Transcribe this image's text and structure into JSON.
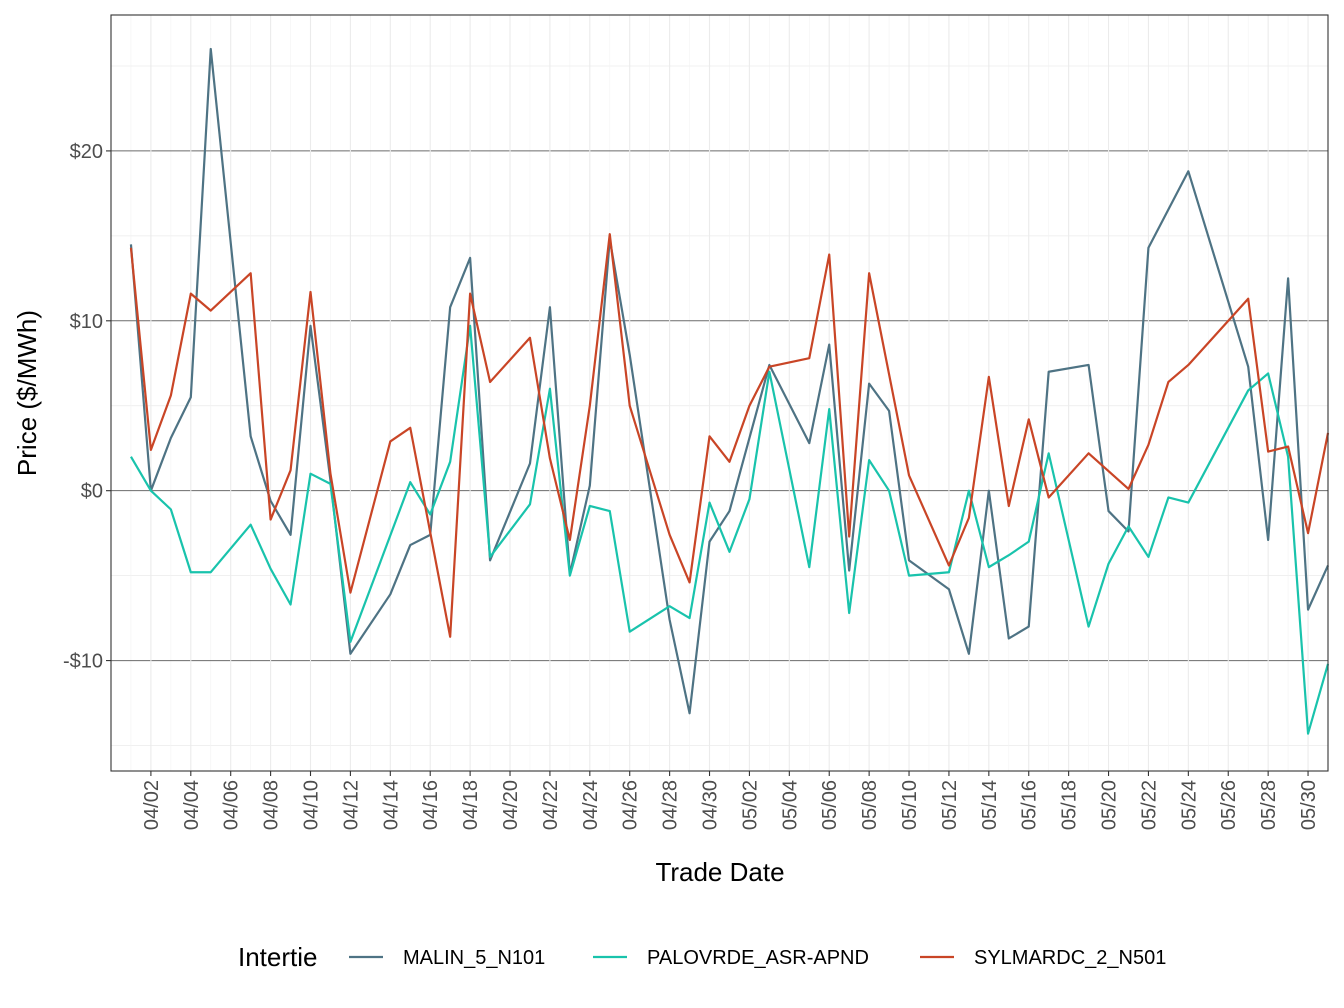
{
  "chart_data": {
    "type": "line",
    "xlabel": "Trade Date",
    "ylabel": "Price ($/MWh)",
    "y_tick_labels": [
      "-$10",
      "$0",
      "$10",
      "$20"
    ],
    "y_ticks": [
      -10,
      0,
      10,
      20
    ],
    "ylim": [
      -16.5,
      28
    ],
    "xlim": [
      "2024-03-31",
      "2024-05-31"
    ],
    "x_ticks": [
      "2024-04-02",
      "2024-04-04",
      "2024-04-06",
      "2024-04-08",
      "2024-04-10",
      "2024-04-12",
      "2024-04-14",
      "2024-04-16",
      "2024-04-18",
      "2024-04-20",
      "2024-04-22",
      "2024-04-24",
      "2024-04-26",
      "2024-04-28",
      "2024-04-30",
      "2024-05-02",
      "2024-05-04",
      "2024-05-06",
      "2024-05-08",
      "2024-05-10",
      "2024-05-12",
      "2024-05-14",
      "2024-05-16",
      "2024-05-18",
      "2024-05-20",
      "2024-05-22",
      "2024-05-24",
      "2024-05-26",
      "2024-05-28",
      "2024-05-30"
    ],
    "x_tick_labels": [
      "04/02",
      "04/04",
      "04/06",
      "04/08",
      "04/10",
      "04/12",
      "04/14",
      "04/16",
      "04/18",
      "04/20",
      "04/22",
      "04/24",
      "04/26",
      "04/28",
      "04/30",
      "05/02",
      "05/04",
      "05/06",
      "05/08",
      "05/10",
      "05/12",
      "05/14",
      "05/16",
      "05/18",
      "05/20",
      "05/22",
      "05/24",
      "05/26",
      "05/28",
      "05/30"
    ],
    "grid": true,
    "legend": {
      "title": "Intertie",
      "position": "bottom"
    },
    "series": [
      {
        "name": "MALIN_5_N101",
        "color": "#4e7384",
        "points": [
          [
            "2024-04-01",
            14.5
          ],
          [
            "2024-04-02",
            0.0
          ],
          [
            "2024-04-03",
            3.1
          ],
          [
            "2024-04-04",
            5.5
          ],
          [
            "2024-04-05",
            26.0
          ],
          [
            "2024-04-07",
            3.2
          ],
          [
            "2024-04-08",
            -0.6
          ],
          [
            "2024-04-09",
            -2.6
          ],
          [
            "2024-04-10",
            9.7
          ],
          [
            "2024-04-11",
            0.6
          ],
          [
            "2024-04-12",
            -9.6
          ],
          [
            "2024-04-14",
            -6.1
          ],
          [
            "2024-04-15",
            -3.2
          ],
          [
            "2024-04-16",
            -2.6
          ],
          [
            "2024-04-17",
            10.8
          ],
          [
            "2024-04-18",
            13.7
          ],
          [
            "2024-04-19",
            -4.1
          ],
          [
            "2024-04-21",
            1.6
          ],
          [
            "2024-04-22",
            10.8
          ],
          [
            "2024-04-23",
            -4.9
          ],
          [
            "2024-04-24",
            0.3
          ],
          [
            "2024-04-25",
            14.8
          ],
          [
            "2024-04-26",
            8.0
          ],
          [
            "2024-04-28",
            -7.6
          ],
          [
            "2024-04-29",
            -13.1
          ],
          [
            "2024-04-30",
            -3.0
          ],
          [
            "2024-05-01",
            -1.2
          ],
          [
            "2024-05-03",
            7.4
          ],
          [
            "2024-05-05",
            2.8
          ],
          [
            "2024-05-06",
            8.6
          ],
          [
            "2024-05-07",
            -4.7
          ],
          [
            "2024-05-08",
            6.3
          ],
          [
            "2024-05-09",
            4.7
          ],
          [
            "2024-05-10",
            -4.1
          ],
          [
            "2024-05-12",
            -5.8
          ],
          [
            "2024-05-13",
            -9.6
          ],
          [
            "2024-05-14",
            0.0
          ],
          [
            "2024-05-15",
            -8.7
          ],
          [
            "2024-05-16",
            -8.0
          ],
          [
            "2024-05-17",
            7.0
          ],
          [
            "2024-05-19",
            7.4
          ],
          [
            "2024-05-20",
            -1.2
          ],
          [
            "2024-05-21",
            -2.4
          ],
          [
            "2024-05-22",
            14.3
          ],
          [
            "2024-05-24",
            18.8
          ],
          [
            "2024-05-27",
            7.3
          ],
          [
            "2024-05-28",
            -2.9
          ],
          [
            "2024-05-29",
            12.5
          ],
          [
            "2024-05-30",
            -7.0
          ],
          [
            "2024-05-31",
            -4.4
          ]
        ]
      },
      {
        "name": "PALOVRDE_ASR-APND",
        "color": "#19c3ac",
        "points": [
          [
            "2024-04-01",
            2.0
          ],
          [
            "2024-04-02",
            0.0
          ],
          [
            "2024-04-03",
            -1.1
          ],
          [
            "2024-04-04",
            -4.8
          ],
          [
            "2024-04-05",
            -4.8
          ],
          [
            "2024-04-07",
            -2.0
          ],
          [
            "2024-04-08",
            -4.6
          ],
          [
            "2024-04-09",
            -6.7
          ],
          [
            "2024-04-10",
            1.0
          ],
          [
            "2024-04-11",
            0.4
          ],
          [
            "2024-04-12",
            -8.9
          ],
          [
            "2024-04-15",
            0.5
          ],
          [
            "2024-04-16",
            -1.4
          ],
          [
            "2024-04-17",
            1.7
          ],
          [
            "2024-04-18",
            9.7
          ],
          [
            "2024-04-19",
            -3.9
          ],
          [
            "2024-04-21",
            -0.8
          ],
          [
            "2024-04-22",
            6.0
          ],
          [
            "2024-04-23",
            -5.0
          ],
          [
            "2024-04-24",
            -0.9
          ],
          [
            "2024-04-25",
            -1.2
          ],
          [
            "2024-04-26",
            -8.3
          ],
          [
            "2024-04-28",
            -6.8
          ],
          [
            "2024-04-29",
            -7.5
          ],
          [
            "2024-04-30",
            -0.7
          ],
          [
            "2024-05-01",
            -3.6
          ],
          [
            "2024-05-02",
            -0.5
          ],
          [
            "2024-05-03",
            7.0
          ],
          [
            "2024-05-05",
            -4.5
          ],
          [
            "2024-05-06",
            4.8
          ],
          [
            "2024-05-07",
            -7.2
          ],
          [
            "2024-05-08",
            1.8
          ],
          [
            "2024-05-09",
            0.0
          ],
          [
            "2024-05-10",
            -5.0
          ],
          [
            "2024-05-12",
            -4.8
          ],
          [
            "2024-05-13",
            0.0
          ],
          [
            "2024-05-14",
            -4.5
          ],
          [
            "2024-05-15",
            -3.8
          ],
          [
            "2024-05-16",
            -3.0
          ],
          [
            "2024-05-17",
            2.2
          ],
          [
            "2024-05-19",
            -8.0
          ],
          [
            "2024-05-20",
            -4.3
          ],
          [
            "2024-05-21",
            -2.1
          ],
          [
            "2024-05-22",
            -3.9
          ],
          [
            "2024-05-23",
            -0.4
          ],
          [
            "2024-05-24",
            -0.7
          ],
          [
            "2024-05-27",
            5.9
          ],
          [
            "2024-05-28",
            6.9
          ],
          [
            "2024-05-29",
            2.0
          ],
          [
            "2024-05-30",
            -14.3
          ],
          [
            "2024-05-31",
            -10.2
          ]
        ]
      },
      {
        "name": "SYLMARDC_2_N501",
        "color": "#c94526",
        "points": [
          [
            "2024-04-01",
            14.3
          ],
          [
            "2024-04-02",
            2.4
          ],
          [
            "2024-04-03",
            5.6
          ],
          [
            "2024-04-04",
            11.6
          ],
          [
            "2024-04-05",
            10.6
          ],
          [
            "2024-04-07",
            12.8
          ],
          [
            "2024-04-08",
            -1.7
          ],
          [
            "2024-04-09",
            1.2
          ],
          [
            "2024-04-10",
            11.7
          ],
          [
            "2024-04-11",
            1.0
          ],
          [
            "2024-04-12",
            -6.0
          ],
          [
            "2024-04-14",
            2.9
          ],
          [
            "2024-04-15",
            3.7
          ],
          [
            "2024-04-17",
            -8.6
          ],
          [
            "2024-04-18",
            11.6
          ],
          [
            "2024-04-19",
            6.4
          ],
          [
            "2024-04-21",
            9.0
          ],
          [
            "2024-04-22",
            1.9
          ],
          [
            "2024-04-23",
            -2.9
          ],
          [
            "2024-04-24",
            5.0
          ],
          [
            "2024-04-25",
            15.1
          ],
          [
            "2024-04-26",
            5.0
          ],
          [
            "2024-04-28",
            -2.6
          ],
          [
            "2024-04-29",
            -5.4
          ],
          [
            "2024-04-30",
            3.2
          ],
          [
            "2024-05-01",
            1.7
          ],
          [
            "2024-05-02",
            5.0
          ],
          [
            "2024-05-03",
            7.3
          ],
          [
            "2024-05-05",
            7.8
          ],
          [
            "2024-05-06",
            13.9
          ],
          [
            "2024-05-07",
            -2.7
          ],
          [
            "2024-05-08",
            12.8
          ],
          [
            "2024-05-10",
            0.9
          ],
          [
            "2024-05-12",
            -4.4
          ],
          [
            "2024-05-13",
            -1.6
          ],
          [
            "2024-05-14",
            6.7
          ],
          [
            "2024-05-15",
            -0.9
          ],
          [
            "2024-05-16",
            4.2
          ],
          [
            "2024-05-17",
            -0.4
          ],
          [
            "2024-05-19",
            2.2
          ],
          [
            "2024-05-21",
            0.1
          ],
          [
            "2024-05-22",
            2.7
          ],
          [
            "2024-05-23",
            6.4
          ],
          [
            "2024-05-24",
            7.4
          ],
          [
            "2024-05-27",
            11.3
          ],
          [
            "2024-05-28",
            2.3
          ],
          [
            "2024-05-29",
            2.6
          ],
          [
            "2024-05-30",
            -2.5
          ],
          [
            "2024-05-31",
            3.4
          ]
        ]
      }
    ]
  }
}
